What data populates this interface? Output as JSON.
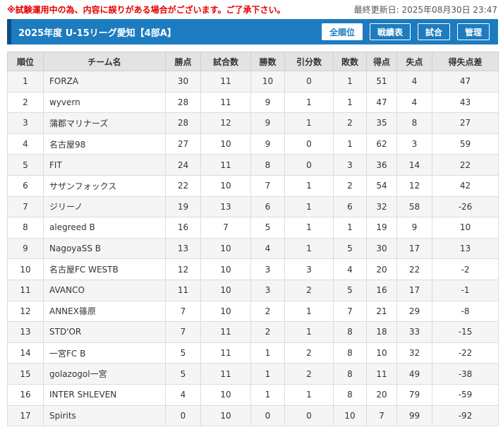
{
  "notice": "※試験運用中の為、内容に誤りがある場合がございます。ご了承下さい。",
  "updated": "最終更新日: 2025年08月30日 23:47",
  "title": "2025年度 U-15リーグ愛知【4部A】",
  "nav": [
    "全順位",
    "戦績表",
    "試合",
    "管理"
  ],
  "headers": [
    "順位",
    "チーム名",
    "勝点",
    "試合数",
    "勝数",
    "引分数",
    "敗数",
    "得点",
    "失点",
    "得失点差"
  ],
  "rows": [
    [
      "1",
      "FORZA",
      "30",
      "11",
      "10",
      "0",
      "1",
      "51",
      "4",
      "47"
    ],
    [
      "2",
      "wyvern",
      "28",
      "11",
      "9",
      "1",
      "1",
      "47",
      "4",
      "43"
    ],
    [
      "3",
      "蒲郡マリナーズ",
      "28",
      "12",
      "9",
      "1",
      "2",
      "35",
      "8",
      "27"
    ],
    [
      "4",
      "名古屋98",
      "27",
      "10",
      "9",
      "0",
      "1",
      "62",
      "3",
      "59"
    ],
    [
      "5",
      "FIT",
      "24",
      "11",
      "8",
      "0",
      "3",
      "36",
      "14",
      "22"
    ],
    [
      "6",
      "サザンフォックス",
      "22",
      "10",
      "7",
      "1",
      "2",
      "54",
      "12",
      "42"
    ],
    [
      "7",
      "ジリーノ",
      "19",
      "13",
      "6",
      "1",
      "6",
      "32",
      "58",
      "-26"
    ],
    [
      "8",
      "alegreed B",
      "16",
      "7",
      "5",
      "1",
      "1",
      "19",
      "9",
      "10"
    ],
    [
      "9",
      "NagoyaSS B",
      "13",
      "10",
      "4",
      "1",
      "5",
      "30",
      "17",
      "13"
    ],
    [
      "10",
      "名古屋FC WESTB",
      "12",
      "10",
      "3",
      "3",
      "4",
      "20",
      "22",
      "-2"
    ],
    [
      "11",
      "AVANCO",
      "11",
      "10",
      "3",
      "2",
      "5",
      "16",
      "17",
      "-1"
    ],
    [
      "12",
      "ANNEX篠原",
      "7",
      "10",
      "2",
      "1",
      "7",
      "21",
      "29",
      "-8"
    ],
    [
      "13",
      "STD'OR",
      "7",
      "11",
      "2",
      "1",
      "8",
      "18",
      "33",
      "-15"
    ],
    [
      "14",
      "一宮FC B",
      "5",
      "11",
      "1",
      "2",
      "8",
      "10",
      "32",
      "-22"
    ],
    [
      "15",
      "golazogol一宮",
      "5",
      "11",
      "1",
      "2",
      "8",
      "11",
      "49",
      "-38"
    ],
    [
      "16",
      "INTER SHLEVEN",
      "4",
      "10",
      "1",
      "1",
      "8",
      "20",
      "79",
      "-59"
    ],
    [
      "17",
      "Spirits",
      "0",
      "10",
      "0",
      "0",
      "10",
      "7",
      "99",
      "-92"
    ]
  ],
  "colors": {
    "header_bar": "#1d7cc0",
    "notice": "#e60000"
  }
}
